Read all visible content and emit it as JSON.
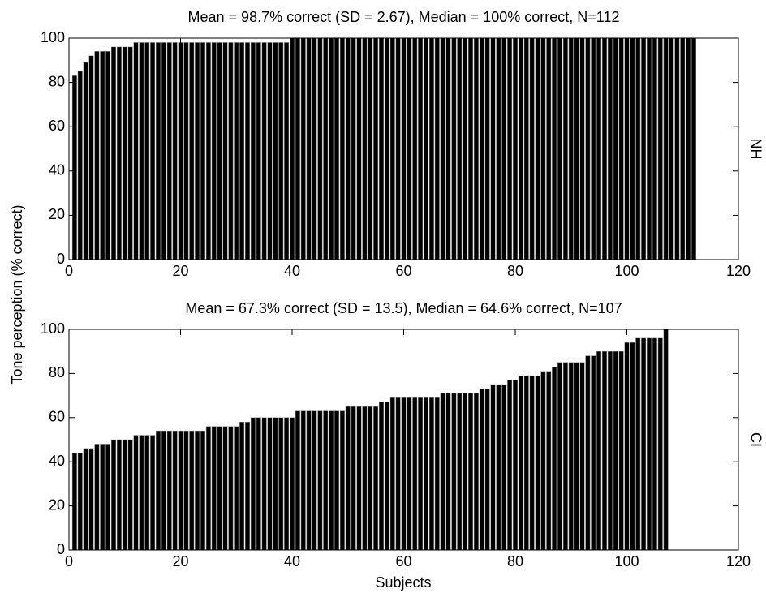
{
  "ylabel": "Tone perception (% correct)",
  "xlabel": "Subjects",
  "chart_data": [
    {
      "type": "bar",
      "title": "Mean = 98.7% correct (SD = 2.67), Median = 100% correct, N=112",
      "side_label": "NH",
      "color": "#000000",
      "x": [
        1,
        2,
        3,
        4,
        5,
        6,
        7,
        8,
        9,
        10,
        11,
        12,
        13,
        14,
        15,
        16,
        17,
        18,
        19,
        20,
        21,
        22,
        23,
        24,
        25,
        26,
        27,
        28,
        29,
        30,
        31,
        32,
        33,
        34,
        35,
        36,
        37,
        38,
        39,
        40,
        41,
        42,
        43,
        44,
        45,
        46,
        47,
        48,
        49,
        50,
        51,
        52,
        53,
        54,
        55,
        56,
        57,
        58,
        59,
        60,
        61,
        62,
        63,
        64,
        65,
        66,
        67,
        68,
        69,
        70,
        71,
        72,
        73,
        74,
        75,
        76,
        77,
        78,
        79,
        80,
        81,
        82,
        83,
        84,
        85,
        86,
        87,
        88,
        89,
        90,
        91,
        92,
        93,
        94,
        95,
        96,
        97,
        98,
        99,
        100,
        101,
        102,
        103,
        104,
        105,
        106,
        107,
        108,
        109,
        110,
        111,
        112
      ],
      "values": [
        83,
        85,
        89,
        92,
        94,
        94,
        94,
        96,
        96,
        96,
        96,
        98,
        98,
        98,
        98,
        98,
        98,
        98,
        98,
        98,
        98,
        98,
        98,
        98,
        98,
        98,
        98,
        98,
        98,
        98,
        98,
        98,
        98,
        98,
        98,
        98,
        98,
        98,
        98,
        100,
        100,
        100,
        100,
        100,
        100,
        100,
        100,
        100,
        100,
        100,
        100,
        100,
        100,
        100,
        100,
        100,
        100,
        100,
        100,
        100,
        100,
        100,
        100,
        100,
        100,
        100,
        100,
        100,
        100,
        100,
        100,
        100,
        100,
        100,
        100,
        100,
        100,
        100,
        100,
        100,
        100,
        100,
        100,
        100,
        100,
        100,
        100,
        100,
        100,
        100,
        100,
        100,
        100,
        100,
        100,
        100,
        100,
        100,
        100,
        100,
        100,
        100,
        100,
        100,
        100,
        100,
        100,
        100,
        100,
        100,
        100,
        100
      ],
      "xlim": [
        0,
        120
      ],
      "xticks": [
        0,
        20,
        40,
        60,
        80,
        100,
        120
      ],
      "ylim": [
        0,
        100
      ],
      "yticks": [
        0,
        20,
        40,
        60,
        80,
        100
      ]
    },
    {
      "type": "bar",
      "title": "Mean = 67.3% correct (SD = 13.5), Median = 64.6% correct, N=107",
      "side_label": "CI",
      "color": "#000000",
      "x": [
        1,
        2,
        3,
        4,
        5,
        6,
        7,
        8,
        9,
        10,
        11,
        12,
        13,
        14,
        15,
        16,
        17,
        18,
        19,
        20,
        21,
        22,
        23,
        24,
        25,
        26,
        27,
        28,
        29,
        30,
        31,
        32,
        33,
        34,
        35,
        36,
        37,
        38,
        39,
        40,
        41,
        42,
        43,
        44,
        45,
        46,
        47,
        48,
        49,
        50,
        51,
        52,
        53,
        54,
        55,
        56,
        57,
        58,
        59,
        60,
        61,
        62,
        63,
        64,
        65,
        66,
        67,
        68,
        69,
        70,
        71,
        72,
        73,
        74,
        75,
        76,
        77,
        78,
        79,
        80,
        81,
        82,
        83,
        84,
        85,
        86,
        87,
        88,
        89,
        90,
        91,
        92,
        93,
        94,
        95,
        96,
        97,
        98,
        99,
        100,
        101,
        102,
        103,
        104,
        105,
        106,
        107
      ],
      "values": [
        44,
        44,
        46,
        46,
        48,
        48,
        48,
        50,
        50,
        50,
        50,
        52,
        52,
        52,
        52,
        54,
        54,
        54,
        54,
        54,
        54,
        54,
        54,
        54,
        56,
        56,
        56,
        56,
        56,
        56,
        58,
        58,
        60,
        60,
        60,
        60,
        60,
        60,
        60,
        60,
        63,
        63,
        63,
        63,
        63,
        63,
        63,
        63,
        63,
        65,
        65,
        65,
        65,
        65,
        65,
        67,
        67,
        69,
        69,
        69,
        69,
        69,
        69,
        69,
        69,
        69,
        71,
        71,
        71,
        71,
        71,
        71,
        71,
        73,
        73,
        75,
        75,
        75,
        77,
        77,
        79,
        79,
        79,
        79,
        81,
        81,
        83,
        85,
        85,
        85,
        85,
        85,
        88,
        88,
        90,
        90,
        90,
        90,
        90,
        94,
        94,
        96,
        96,
        96,
        96,
        96,
        100
      ],
      "xlim": [
        0,
        120
      ],
      "xticks": [
        0,
        20,
        40,
        60,
        80,
        100,
        120
      ],
      "ylim": [
        0,
        100
      ],
      "yticks": [
        0,
        20,
        40,
        60,
        80,
        100
      ]
    }
  ]
}
